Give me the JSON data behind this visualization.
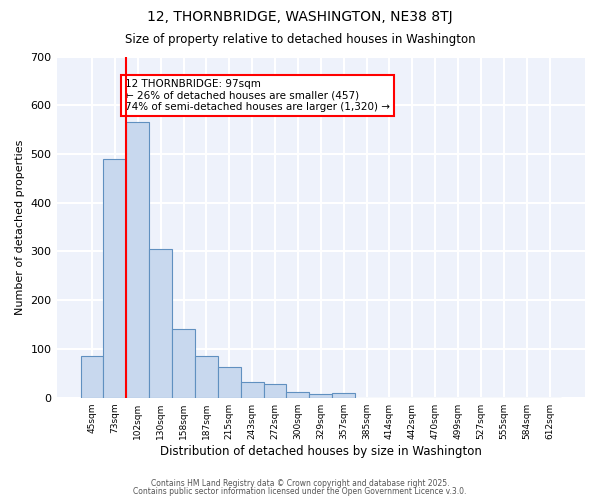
{
  "title1": "12, THORNBRIDGE, WASHINGTON, NE38 8TJ",
  "title2": "Size of property relative to detached houses in Washington",
  "xlabel": "Distribution of detached houses by size in Washington",
  "ylabel": "Number of detached properties",
  "categories": [
    "45sqm",
    "73sqm",
    "102sqm",
    "130sqm",
    "158sqm",
    "187sqm",
    "215sqm",
    "243sqm",
    "272sqm",
    "300sqm",
    "329sqm",
    "357sqm",
    "385sqm",
    "414sqm",
    "442sqm",
    "470sqm",
    "499sqm",
    "527sqm",
    "555sqm",
    "584sqm",
    "612sqm"
  ],
  "values": [
    85,
    490,
    565,
    305,
    140,
    85,
    62,
    33,
    28,
    12,
    8,
    10,
    0,
    0,
    0,
    0,
    0,
    0,
    0,
    0,
    0
  ],
  "bar_color": "#c8d8ee",
  "bar_edge_color": "#6090c0",
  "red_line_x": 1.5,
  "annotation_line1": "12 THORNBRIDGE: 97sqm",
  "annotation_line2": "← 26% of detached houses are smaller (457)",
  "annotation_line3": "74% of semi-detached houses are larger (1,320) →",
  "annotation_box_color": "white",
  "annotation_box_edge_color": "red",
  "ylim": [
    0,
    700
  ],
  "yticks": [
    0,
    100,
    200,
    300,
    400,
    500,
    600,
    700
  ],
  "bg_color": "#eef2fb",
  "grid_color": "white",
  "footer1": "Contains HM Land Registry data © Crown copyright and database right 2025.",
  "footer2": "Contains public sector information licensed under the Open Government Licence v.3.0."
}
